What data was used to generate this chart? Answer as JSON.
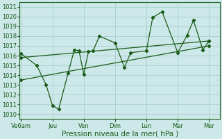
{
  "bg_color": "#cde8e8",
  "grid_color": "#a8cece",
  "line_color": "#1a5c1a",
  "x_labels": [
    "Ve6am",
    "Jeu",
    "Ven",
    "Dim",
    "Lun",
    "Mar",
    "Mer"
  ],
  "x_tick_pos": [
    0,
    1,
    2,
    3,
    4,
    5,
    6
  ],
  "main_line_x": [
    0,
    0.5,
    0.8,
    1.0,
    1.2,
    1.5,
    1.7,
    1.85,
    2.0,
    2.15,
    2.3,
    2.5,
    3.0,
    3.3,
    3.5,
    4.0,
    4.2,
    4.5,
    5.0,
    5.3,
    5.5,
    5.8,
    6.0
  ],
  "main_line_y": [
    1016.2,
    1015.0,
    1013.0,
    1010.9,
    1010.5,
    1014.2,
    1016.6,
    1016.5,
    1014.1,
    1016.4,
    1016.5,
    1018.0,
    1017.3,
    1014.8,
    1016.3,
    1016.5,
    1019.9,
    1020.5,
    1016.3,
    1018.1,
    1019.6,
    1016.6,
    1017.5
  ],
  "upper_line_x": [
    0,
    6
  ],
  "upper_line_y": [
    1015.8,
    1017.5
  ],
  "lower_line_x": [
    0,
    6
  ],
  "lower_line_y": [
    1013.5,
    1017.0
  ],
  "ylim": [
    1009.5,
    1021.5
  ],
  "yticks": [
    1010,
    1011,
    1012,
    1013,
    1014,
    1015,
    1016,
    1017,
    1018,
    1019,
    1020,
    1021
  ],
  "xlim": [
    -0.05,
    6.35
  ],
  "xlabel": "Pression niveau de la mer( hPa )",
  "xlabel_fontsize": 7.5,
  "tick_fontsize": 6.0,
  "marker": "D",
  "marker_size": 2.2,
  "linewidth": 0.9
}
